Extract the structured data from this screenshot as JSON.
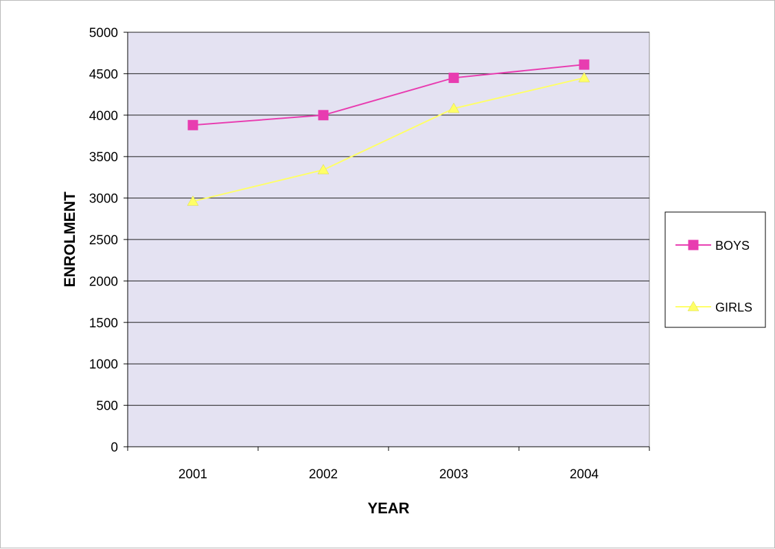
{
  "chart_data": {
    "type": "line",
    "title": "",
    "xlabel": "YEAR",
    "ylabel": "ENROLMENT",
    "categories": [
      "2001",
      "2002",
      "2003",
      "2004"
    ],
    "ylim": [
      0,
      5000
    ],
    "yticks": [
      0,
      500,
      1000,
      1500,
      2000,
      2500,
      3000,
      3500,
      4000,
      4500,
      5000
    ],
    "grid": true,
    "legend_position": "right",
    "plot_background": "#e4e2f2",
    "series": [
      {
        "name": "BOYS",
        "values": [
          3880,
          4000,
          4450,
          4610
        ],
        "color": "#e83cb0",
        "marker": "square"
      },
      {
        "name": "GIRLS",
        "values": [
          2960,
          3340,
          4080,
          4450
        ],
        "color": "#ffff66",
        "marker": "triangle"
      }
    ]
  }
}
